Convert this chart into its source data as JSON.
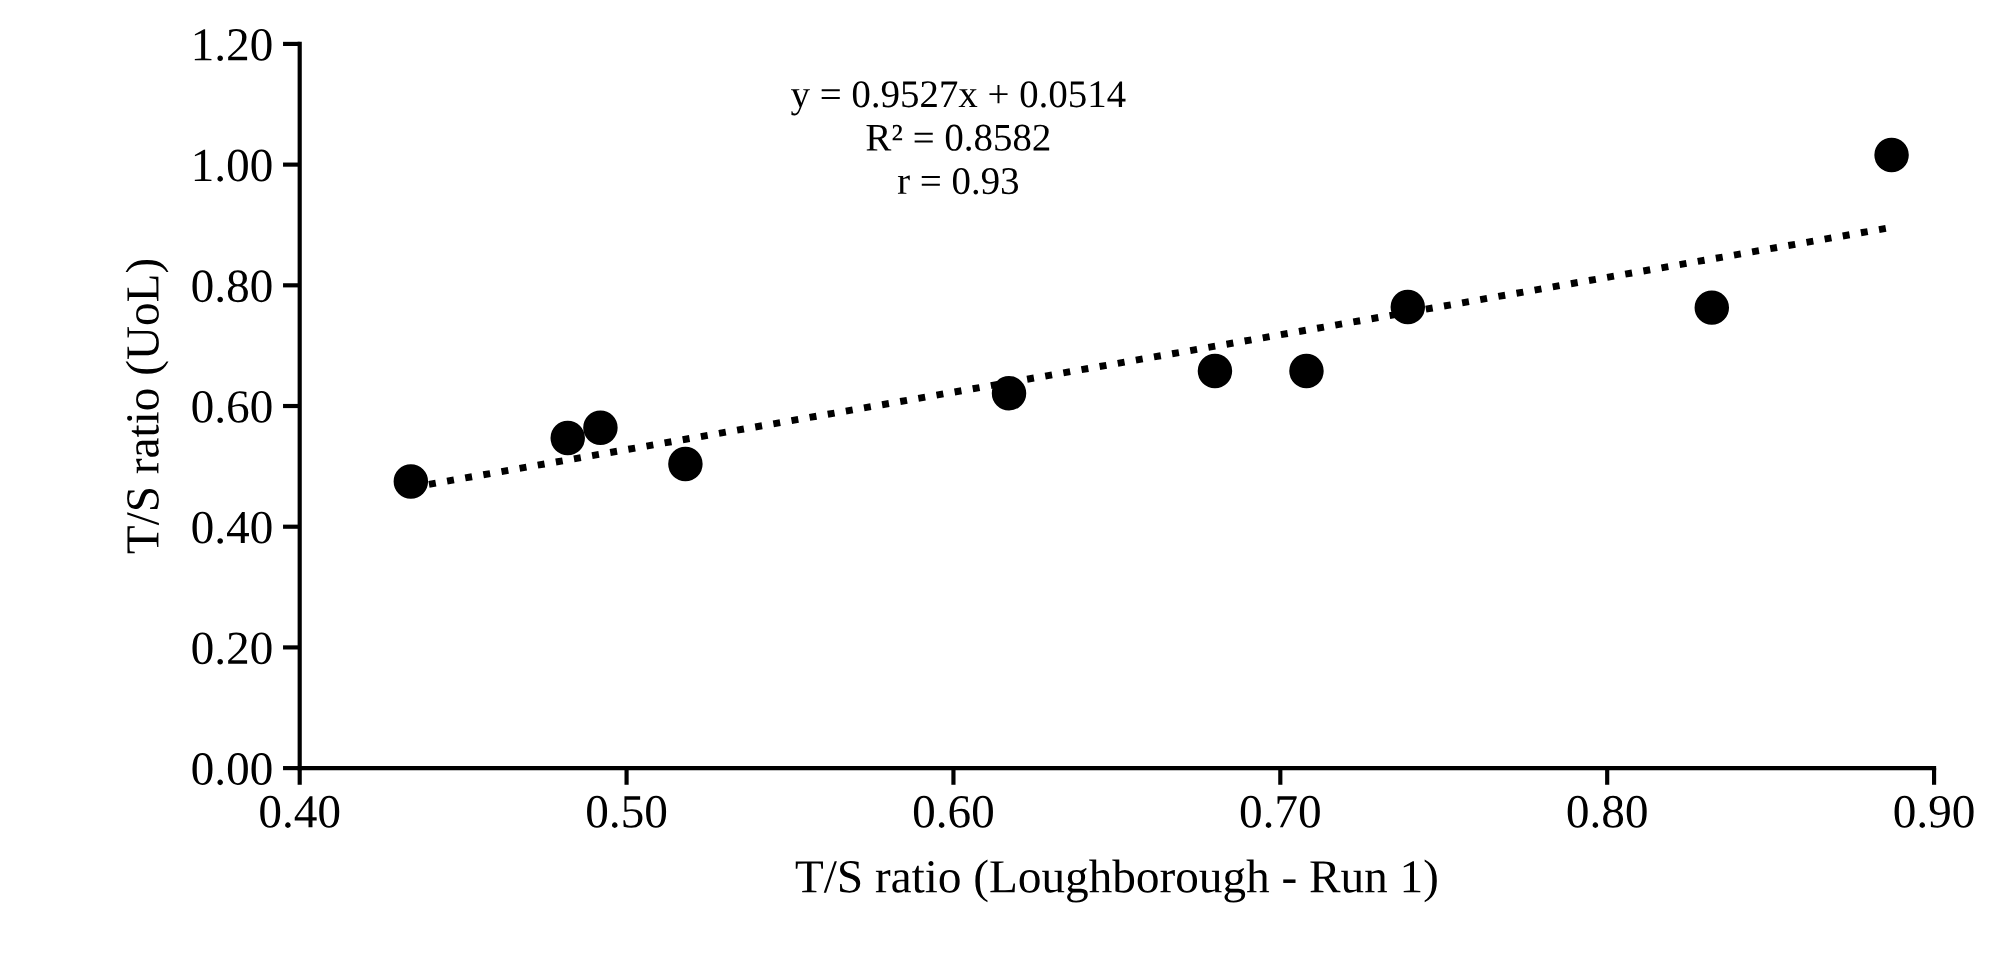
{
  "chart_data": {
    "type": "scatter",
    "xlabel": "T/S ratio (Loughborough - Run 1)",
    "ylabel": "T/S ratio (UoL)",
    "series": [
      {
        "color": "#000000",
        "marker": "circle",
        "x": [
          0.434,
          0.482,
          0.492,
          0.518,
          0.617,
          0.68,
          0.708,
          0.739,
          0.832,
          0.887
        ],
        "values": [
          0.475,
          0.547,
          0.564,
          0.504,
          0.621,
          0.658,
          0.658,
          0.764,
          0.763,
          1.016
        ]
      },
      {
        "type": "line",
        "color": "#000000",
        "marker": "none",
        "line_style": "dotted",
        "x": [
          0.434,
          0.887
        ],
        "values": [
          0.465,
          0.896
        ]
      }
    ],
    "annotations": [
      "y = 0.9527x + 0.0514\nR² = 0.8582\nr = 0.93"
    ],
    "xlim": [
      0.4,
      0.9
    ],
    "xticks": [
      {
        "value": 0.4,
        "label": "0.40"
      },
      {
        "value": 0.5,
        "label": "0.50"
      },
      {
        "value": 0.6,
        "label": "0.60"
      },
      {
        "value": 0.7,
        "label": "0.70"
      },
      {
        "value": 0.8,
        "label": "0.80"
      },
      {
        "value": 0.9,
        "label": "0.90"
      }
    ],
    "ylim": [
      0,
      1.2
    ],
    "yticks": [
      {
        "value": 0,
        "label": "0.00"
      },
      {
        "value": 0.2,
        "label": "0.20"
      },
      {
        "value": 0.4,
        "label": "0.40"
      },
      {
        "value": 0.6,
        "label": "0.60"
      },
      {
        "value": 0.8,
        "label": "0.80"
      },
      {
        "value": 1.0,
        "label": "1.00"
      },
      {
        "value": 1.2,
        "label": "1.20"
      }
    ],
    "grid": false,
    "legend": false
  }
}
